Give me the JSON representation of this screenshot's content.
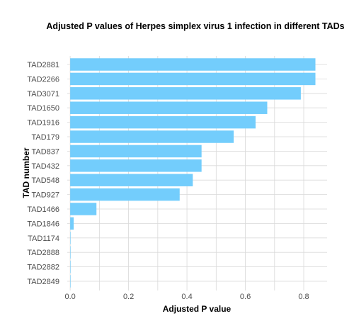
{
  "chart_data": {
    "type": "bar",
    "orientation": "horizontal",
    "title": "Adjusted P values of Herpes simplex virus 1 infection in different TADs",
    "xlabel": "Adjusted P value",
    "ylabel": "TAD number",
    "categories": [
      "TAD2881",
      "TAD2266",
      "TAD3071",
      "TAD1650",
      "TAD1916",
      "TAD179",
      "TAD837",
      "TAD432",
      "TAD548",
      "TAD927",
      "TAD1466",
      "TAD1846",
      "TAD1174",
      "TAD2888",
      "TAD2882",
      "TAD2849"
    ],
    "values": [
      0.84,
      0.84,
      0.79,
      0.675,
      0.635,
      0.56,
      0.45,
      0.45,
      0.42,
      0.375,
      0.09,
      0.012,
      0.001,
      0.001,
      0.001,
      0.001
    ],
    "xlim": [
      -0.01,
      0.88
    ],
    "xticks": [
      0.0,
      0.2,
      0.4,
      0.6,
      0.8
    ],
    "xtick_labels": [
      "0.0",
      "0.2",
      "0.4",
      "0.6",
      "0.8"
    ],
    "grid": true,
    "bar_color": "#73cdfc",
    "background": "#ffffff",
    "grid_color": "#d9d9d9"
  }
}
